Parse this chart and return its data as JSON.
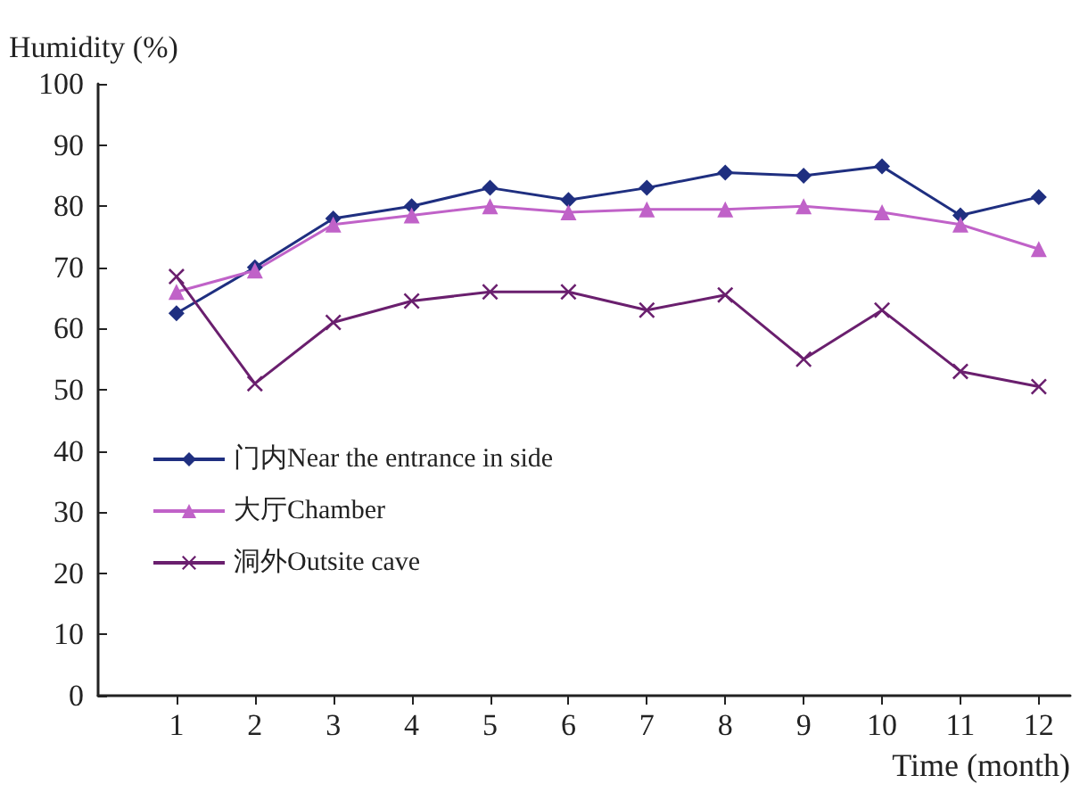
{
  "chart_data": {
    "type": "line",
    "xlabel": "Time (month)",
    "ylabel": "Humidity (%)",
    "x": [
      1,
      2,
      3,
      4,
      5,
      6,
      7,
      8,
      9,
      10,
      11,
      12
    ],
    "xlim": [
      0,
      12.4
    ],
    "xticks": [
      1,
      2,
      3,
      4,
      5,
      6,
      7,
      8,
      9,
      10,
      11,
      12
    ],
    "ylim": [
      0,
      100
    ],
    "yticks": [
      0,
      10,
      20,
      30,
      40,
      50,
      60,
      70,
      80,
      90,
      100
    ],
    "grid": false,
    "legend": "left",
    "series": [
      {
        "name": "门内Near the entrance in side",
        "color": "#1f2f80",
        "marker": "diamond",
        "values": [
          62.5,
          70,
          78,
          80,
          83,
          81,
          83,
          85.5,
          85,
          86.5,
          78.5,
          81.5
        ]
      },
      {
        "name": "大厅Chamber",
        "color": "#c062c8",
        "marker": "triangle",
        "values": [
          66,
          69.5,
          77,
          78.5,
          80,
          79,
          79.5,
          79.5,
          80,
          79,
          77,
          73
        ]
      },
      {
        "name": "洞外Outsite cave",
        "color": "#6a1f6e",
        "marker": "cross",
        "values": [
          68.5,
          51,
          61,
          64.5,
          66,
          66,
          63,
          65.5,
          55,
          63,
          53,
          50.5
        ]
      }
    ]
  }
}
